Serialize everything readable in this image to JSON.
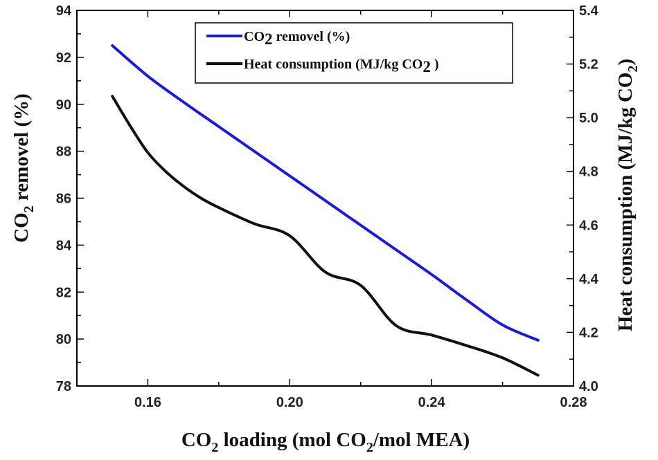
{
  "chart_data": {
    "type": "line",
    "title": "",
    "xlabel": {
      "pre": "CO",
      "sub": "2",
      "mid": " loading (mol CO",
      "sub2": "2",
      "post": "/mol MEA)"
    },
    "ylabel_left": {
      "pre": "CO",
      "sub": "2",
      "post": " removel (%)"
    },
    "ylabel_right": {
      "pre": "Heat consumption (MJ/kg CO",
      "sub": "2",
      "post": ")"
    },
    "xlim": [
      0.14,
      0.28
    ],
    "x_ticks": [
      "0.16",
      "0.20",
      "0.24",
      "0.28"
    ],
    "y_left_lim": [
      78,
      94
    ],
    "y_left_ticks": [
      "78",
      "80",
      "82",
      "84",
      "86",
      "88",
      "90",
      "92",
      "94"
    ],
    "y_right_lim": [
      4.0,
      5.4
    ],
    "y_right_ticks": [
      "4.0",
      "4.2",
      "4.4",
      "4.6",
      "4.8",
      "5.0",
      "5.2",
      "5.4"
    ],
    "legend_position": "top-center",
    "series": [
      {
        "name": "CO2 removel (%)",
        "legend": {
          "pre": "CO",
          "sub": "2",
          "post": " removel (%)"
        },
        "axis": "left",
        "color": "#1a1adb",
        "x": [
          0.15,
          0.16,
          0.17,
          0.18,
          0.19,
          0.2,
          0.21,
          0.22,
          0.23,
          0.24,
          0.25,
          0.26,
          0.27
        ],
        "values": [
          92.5,
          91.2,
          90.1,
          89.05,
          88.0,
          86.95,
          85.9,
          84.85,
          83.8,
          82.75,
          81.65,
          80.6,
          79.95
        ]
      },
      {
        "name": "Heat consumption (MJ/kg CO2)",
        "legend": {
          "pre": "Heat consumption (MJ/kg CO",
          "sub": "2",
          "post": " )"
        },
        "axis": "right",
        "color": "#111111",
        "x": [
          0.15,
          0.155,
          0.16,
          0.165,
          0.17,
          0.175,
          0.18,
          0.19,
          0.2,
          0.21,
          0.22,
          0.23,
          0.24,
          0.25,
          0.26,
          0.27
        ],
        "values": [
          5.08,
          4.97,
          4.87,
          4.8,
          4.745,
          4.7,
          4.665,
          4.605,
          4.56,
          4.425,
          4.375,
          4.225,
          4.19,
          4.15,
          4.105,
          4.04
        ]
      }
    ]
  }
}
